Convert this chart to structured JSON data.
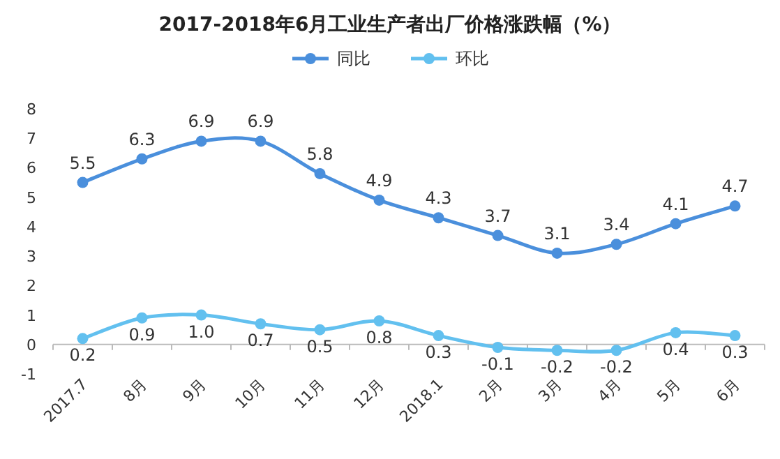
{
  "chart_data": {
    "type": "line",
    "title": "2017-2018年6月工业生产者出厂价格涨跌幅（%）",
    "categories": [
      "2017.7",
      "8月",
      "9月",
      "10月",
      "11月",
      "12月",
      "2018.1",
      "2月",
      "3月",
      "4月",
      "5月",
      "6月"
    ],
    "series": [
      {
        "name": "同比",
        "color": "#4a8fdc",
        "values": [
          5.5,
          6.3,
          6.9,
          6.9,
          5.8,
          4.9,
          4.3,
          3.7,
          3.1,
          3.4,
          4.1,
          4.7
        ],
        "value_labels": [
          "5.5",
          "6.3",
          "6.9",
          "6.9",
          "5.8",
          "4.9",
          "4.3",
          "3.7",
          "3.1",
          "3.4",
          "4.1",
          "4.7"
        ]
      },
      {
        "name": "环比",
        "color": "#62c0ef",
        "values": [
          0.2,
          0.9,
          1.0,
          0.7,
          0.5,
          0.8,
          0.3,
          -0.1,
          -0.2,
          -0.2,
          0.4,
          0.3
        ],
        "value_labels": [
          "0.2",
          "0.9",
          "1.0",
          "0.7",
          "0.5",
          "0.8",
          "0.3",
          "-0.1",
          "-0.2",
          "-0.2",
          "0.4",
          "0.3"
        ]
      }
    ],
    "ylim": [
      -1,
      8
    ],
    "yticks": [
      -1,
      0,
      1,
      2,
      3,
      4,
      5,
      6,
      7,
      8
    ],
    "grid": false,
    "legend": "top",
    "marker": "circle",
    "line_style": "solid"
  }
}
